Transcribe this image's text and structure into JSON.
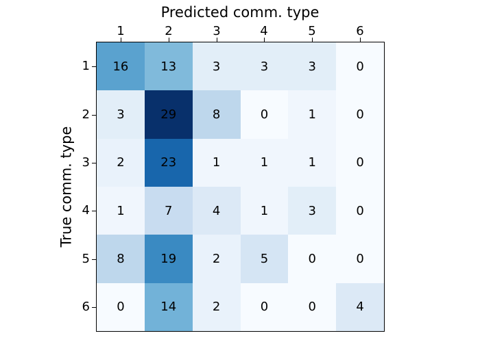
{
  "figure": {
    "background": "#ffffff"
  },
  "chart_data": {
    "type": "heatmap",
    "title": "",
    "xlabel": "Predicted comm. type",
    "ylabel": "True comm. type",
    "x_tick_labels": [
      "1",
      "2",
      "3",
      "4",
      "5",
      "6"
    ],
    "y_tick_labels": [
      "1",
      "2",
      "3",
      "4",
      "5",
      "6"
    ],
    "matrix": [
      [
        16,
        13,
        3,
        3,
        3,
        0
      ],
      [
        3,
        29,
        8,
        0,
        1,
        0
      ],
      [
        2,
        23,
        1,
        1,
        1,
        0
      ],
      [
        1,
        7,
        4,
        1,
        3,
        0
      ],
      [
        8,
        19,
        2,
        5,
        0,
        0
      ],
      [
        0,
        14,
        2,
        0,
        0,
        4
      ]
    ],
    "cell_colors": [
      [
        "#5aa2cf",
        "#80badb",
        "#e2eef8",
        "#e2eef8",
        "#e2eef8",
        "#f7fbff"
      ],
      [
        "#e2eef8",
        "#08306b",
        "#bed7ec",
        "#f7fbff",
        "#f0f6fd",
        "#f7fbff"
      ],
      [
        "#e9f2fb",
        "#1866ac",
        "#f0f6fd",
        "#f0f6fd",
        "#f0f6fd",
        "#f7fbff"
      ],
      [
        "#f0f6fd",
        "#c8dcf0",
        "#dce9f6",
        "#f0f6fd",
        "#e2eef8",
        "#f7fbff"
      ],
      [
        "#bed7ec",
        "#3a8ac2",
        "#e9f2fb",
        "#d5e5f4",
        "#f7fbff",
        "#f7fbff"
      ],
      [
        "#f7fbff",
        "#72b2d8",
        "#e9f2fb",
        "#f7fbff",
        "#f7fbff",
        "#dce9f6"
      ]
    ],
    "colormap": "Blues",
    "vmin": 0,
    "vmax": 29,
    "annotation_text_color": "#000000",
    "frame_color": "#000000",
    "grid": false,
    "legend_position": "none"
  }
}
